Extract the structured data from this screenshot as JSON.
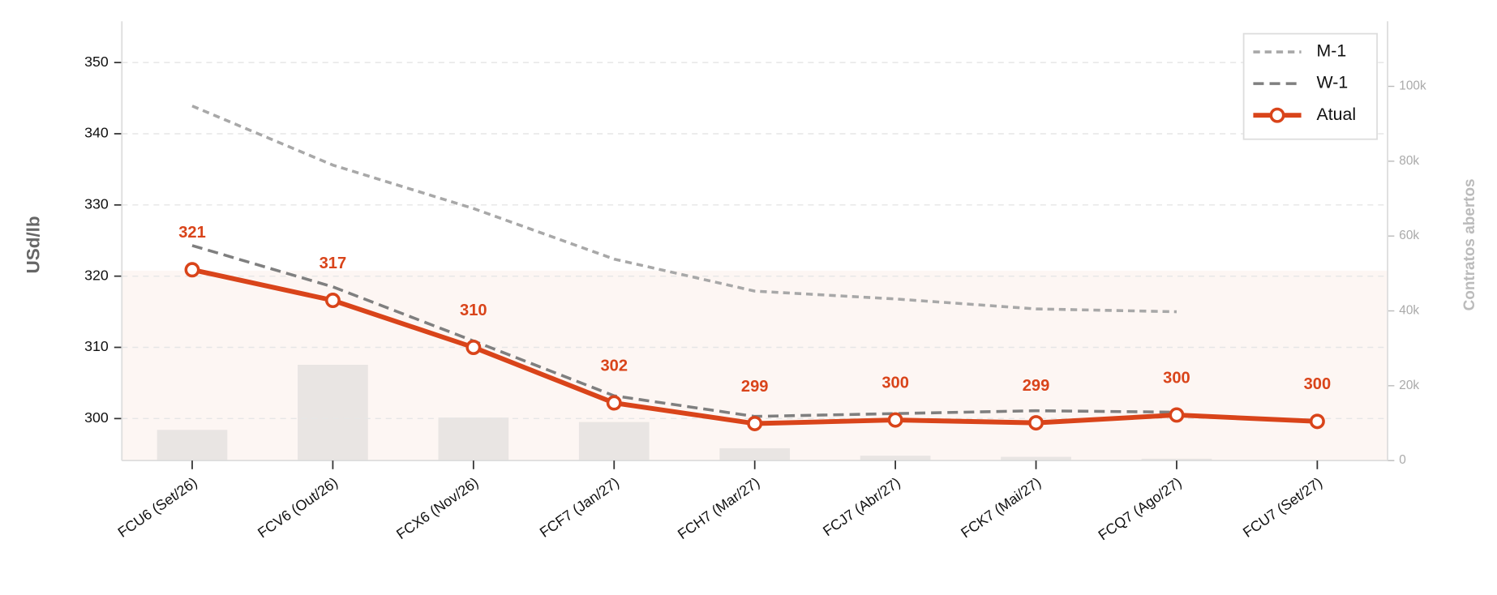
{
  "chart_data": {
    "type": "line",
    "categories": [
      "FCU6 (Set/26)",
      "FCV6 (Out/26)",
      "FCX6 (Nov/26)",
      "FCF7 (Jan/27)",
      "FCH7 (Mar/27)",
      "FCJ7 (Abr/27)",
      "FCK7 (Mai/27)",
      "FCQ7 (Ago/27)",
      "FCU7 (Set/27)"
    ],
    "ylabel": "USd/lb",
    "y2label": "Contratos abertos",
    "ylim": [
      294.1,
      355.8
    ],
    "yticks": [
      300,
      310,
      320,
      330,
      340,
      350
    ],
    "y2lim": [
      0,
      117400
    ],
    "y2ticks": [
      {
        "value": 0,
        "label": "0"
      },
      {
        "value": 20000,
        "label": "20k"
      },
      {
        "value": 40000,
        "label": "40k"
      },
      {
        "value": 60000,
        "label": "60k"
      },
      {
        "value": 80000,
        "label": "80k"
      },
      {
        "value": 100000,
        "label": "100k"
      }
    ],
    "grid": true,
    "legend": "upper right",
    "bars": {
      "type": "bar",
      "axis": "y2",
      "color": "#e9e5e3",
      "values": [
        8200,
        25600,
        11500,
        10300,
        3300,
        1300,
        1000,
        500,
        0
      ]
    },
    "series": [
      {
        "name": "M-1",
        "color": "#a8a8a8",
        "dash": "7 5",
        "values": [
          343.9,
          335.6,
          329.5,
          322.4,
          317.9,
          316.8,
          315.4,
          315.0,
          null
        ]
      },
      {
        "name": "W-1",
        "color": "#7f7f7f",
        "dash": "11 6",
        "values": [
          324.3,
          318.5,
          310.9,
          303.2,
          300.3,
          300.7,
          301.1,
          300.9,
          null
        ]
      },
      {
        "name": "Atual",
        "color": "#d9441a",
        "markers": true,
        "values": [
          320.9,
          316.6,
          310.0,
          302.2,
          299.3,
          299.8,
          299.4,
          300.5,
          299.6
        ],
        "value_labels": [
          "321",
          "317",
          "310",
          "302",
          "299",
          "300",
          "299",
          "300",
          "300"
        ]
      }
    ]
  }
}
